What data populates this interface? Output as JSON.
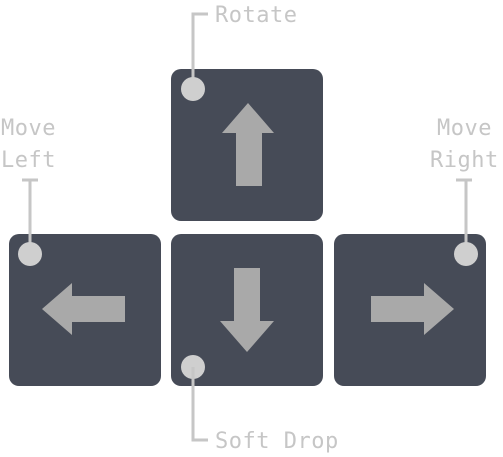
{
  "colors": {
    "key": "#464b57",
    "arrow": "#a9a9a9",
    "callout": "#c6c6c6",
    "dot": "#cfcfcf"
  },
  "keys": {
    "up": {
      "icon": "arrow-up-icon",
      "label": "Rotate"
    },
    "left": {
      "icon": "arrow-left-icon",
      "label_line1": "Move",
      "label_line2": "Left"
    },
    "down": {
      "icon": "arrow-down-icon",
      "label": "Soft Drop"
    },
    "right": {
      "icon": "arrow-right-icon",
      "label_line1": "Move",
      "label_line2": "Right"
    }
  }
}
